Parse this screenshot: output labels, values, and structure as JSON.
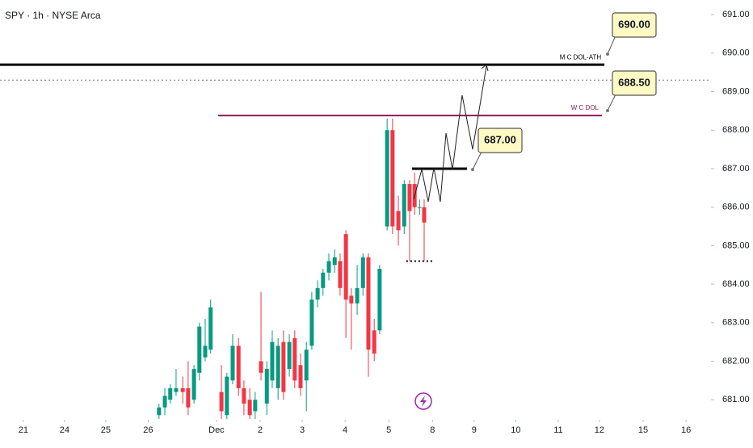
{
  "chart_data": {
    "type": "candlestick",
    "title": "SPY · 1h · NYSE Arca",
    "up_color": "#089981",
    "down_color": "#f23645",
    "x": [
      3.26,
      3.4,
      3.53,
      3.67,
      3.83,
      3.96,
      4.1,
      4.23,
      4.37,
      4.5,
      4.76,
      4.89,
      5.03,
      5.17,
      5.3,
      5.44,
      5.57,
      5.71,
      5.85,
      5.98,
      6.12,
      6.25,
      6.39,
      6.52,
      6.66,
      6.8,
      6.93,
      7.07,
      7.2,
      7.34,
      7.48,
      7.61,
      7.75,
      7.88,
      8.02,
      8.16,
      8.29,
      8.43,
      8.56,
      8.74,
      8.87,
      9.01,
      9.15,
      9.28,
      9.4,
      9.52,
      9.63
    ],
    "open": [
      680.6,
      680.8,
      681.0,
      681.2,
      681.3,
      681.3,
      681.0,
      681.7,
      682.1,
      682.3,
      681.2,
      680.6,
      681.5,
      682.4,
      681.3,
      681.0,
      680.7,
      682.0,
      680.9,
      681.5,
      681.3,
      682.5,
      681.8,
      682.6,
      681.9,
      681.5,
      682.4,
      683.6,
      683.9,
      684.3,
      684.5,
      684.6,
      685.3,
      683.7,
      683.5,
      683.9,
      684.7,
      682.8,
      682.8,
      685.5,
      688.0,
      685.9,
      685.5,
      686.6,
      686.6,
      686.0,
      686.0
    ],
    "high": [
      680.9,
      681.3,
      681.4,
      681.8,
      681.6,
      682.0,
      681.9,
      683.0,
      683.1,
      683.6,
      681.9,
      681.7,
      682.7,
      682.6,
      681.5,
      681.3,
      681.2,
      683.8,
      682.0,
      682.8,
      682.6,
      682.8,
      682.7,
      682.8,
      682.2,
      682.5,
      683.8,
      684.1,
      684.4,
      684.8,
      684.9,
      684.8,
      685.4,
      683.9,
      684.5,
      684.8,
      684.8,
      683.1,
      684.5,
      688.3,
      688.3,
      686.3,
      686.7,
      686.7,
      686.9,
      686.2,
      686.2
    ],
    "low": [
      680.5,
      680.6,
      680.9,
      681.1,
      680.9,
      680.6,
      680.9,
      681.5,
      682.0,
      682.2,
      680.5,
      680.5,
      681.4,
      681.1,
      680.6,
      680.5,
      680.5,
      681.5,
      680.6,
      681.3,
      681.0,
      681.0,
      681.6,
      681.3,
      681.1,
      680.7,
      682.3,
      683.4,
      683.7,
      684.1,
      684.3,
      683.7,
      682.6,
      682.3,
      683.2,
      683.7,
      681.6,
      682.0,
      682.7,
      685.4,
      685.3,
      685.0,
      685.3,
      684.6,
      685.8,
      685.8,
      684.6
    ],
    "close": [
      680.8,
      681.1,
      681.3,
      681.3,
      681.2,
      680.8,
      681.8,
      682.9,
      682.4,
      683.4,
      680.7,
      681.6,
      682.4,
      681.3,
      680.9,
      680.6,
      681.0,
      681.7,
      681.8,
      682.5,
      682.4,
      681.2,
      682.5,
      681.5,
      681.3,
      682.3,
      683.6,
      683.9,
      684.3,
      684.6,
      684.7,
      683.9,
      683.6,
      683.5,
      683.9,
      684.7,
      682.3,
      682.2,
      684.4,
      688.0,
      685.5,
      685.4,
      686.6,
      685.9,
      686.0,
      686.0,
      685.6
    ],
    "xlim": [
      -0.56,
      16.52
    ],
    "xticks": [
      {
        "value": 0,
        "label": "21"
      },
      {
        "value": 0.99,
        "label": "24"
      },
      {
        "value": 1.98,
        "label": "25"
      },
      {
        "value": 3.0,
        "label": "26"
      },
      {
        "value": 4.64,
        "label": "Dec"
      },
      {
        "value": 5.69,
        "label": "2"
      },
      {
        "value": 6.7,
        "label": "3"
      },
      {
        "value": 7.73,
        "label": "4"
      },
      {
        "value": 8.78,
        "label": "5"
      },
      {
        "value": 9.83,
        "label": "8"
      },
      {
        "value": 10.83,
        "label": "9"
      },
      {
        "value": 11.83,
        "label": "10"
      },
      {
        "value": 12.85,
        "label": "11"
      },
      {
        "value": 13.84,
        "label": "12"
      },
      {
        "value": 14.89,
        "label": "15"
      },
      {
        "value": 15.92,
        "label": "16"
      }
    ],
    "ylim": [
      680.48,
      691.38
    ],
    "yticks": [
      {
        "value": 681,
        "label": "681.00"
      },
      {
        "value": 682,
        "label": "682.00"
      },
      {
        "value": 683,
        "label": "683.00"
      },
      {
        "value": 684,
        "label": "684.00"
      },
      {
        "value": 685,
        "label": "685.00"
      },
      {
        "value": 686,
        "label": "686.00"
      },
      {
        "value": 687,
        "label": "687.00"
      },
      {
        "value": 688,
        "label": "688.00"
      },
      {
        "value": 689,
        "label": "689.00"
      },
      {
        "value": 690,
        "label": "690.00"
      },
      {
        "value": 691,
        "label": "691.00"
      }
    ],
    "levels": [
      {
        "name": "M C DOL-ATH",
        "value": 689.7,
        "color": "#000000",
        "style": "solid",
        "x": [
          -0.56,
          13.96
        ]
      },
      {
        "value": 689.3,
        "color": "#777777",
        "style": "dotted",
        "x": [
          -0.56,
          16.52
        ]
      },
      {
        "name": "W C DOL",
        "value": 688.38,
        "color": "#8b1a5b",
        "style": "solid",
        "x": [
          4.68,
          13.9
        ]
      },
      {
        "value": 687.0,
        "color": "#000000",
        "style": "solid",
        "x": [
          9.34,
          10.66
        ]
      },
      {
        "value": 684.6,
        "color": "#000000",
        "style": "dotted",
        "x": [
          9.2,
          9.83
        ]
      }
    ],
    "callouts": [
      "690.00",
      "688.50",
      "687.00"
    ]
  }
}
